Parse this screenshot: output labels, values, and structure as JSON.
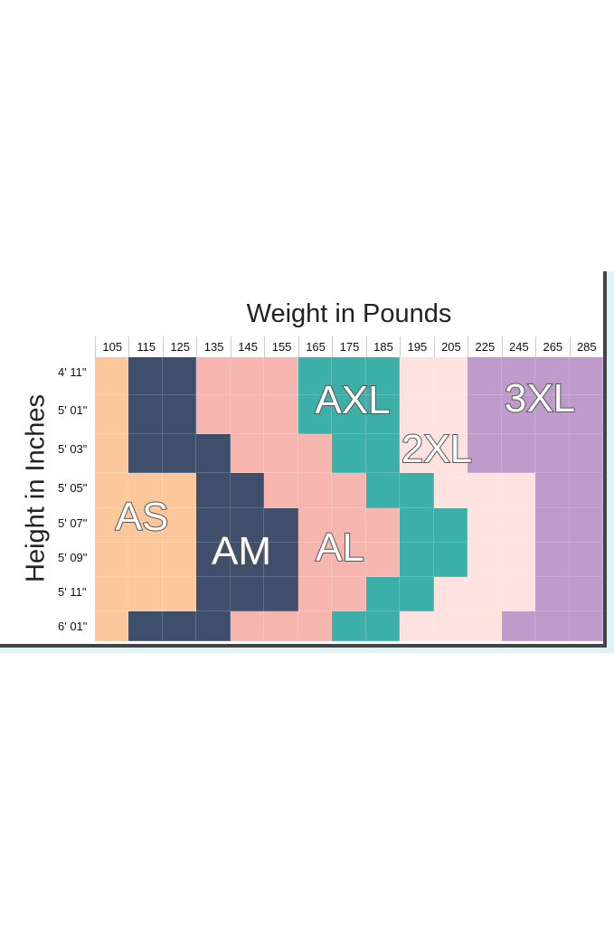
{
  "chart_data": {
    "type": "heatmap",
    "title": "Weight in Pounds",
    "xlabel": "Weight in Pounds",
    "ylabel": "Height in Inches",
    "x": [
      "105",
      "115",
      "125",
      "135",
      "145",
      "155",
      "165",
      "175",
      "185",
      "195",
      "205",
      "225",
      "245",
      "265",
      "285"
    ],
    "y": [
      "4' 11\"",
      "5' 01\"",
      "5' 03\"",
      "5' 05\"",
      "5' 07\"",
      "5' 09\"",
      "5' 11\"",
      "6' 01\""
    ],
    "sizes": {
      "S": "AS",
      "M": "AM",
      "L": "AL",
      "X": "AXL",
      "2": "2XL",
      "3": "3XL"
    },
    "colors": {
      "S": "#fcc89b",
      "M": "#3f4e6b",
      "L": "#f7b5b0",
      "X": "#3cafa8",
      "2": "#fde2df",
      "3": "#bf9bcb"
    },
    "grid": [
      [
        "S",
        "M",
        "M",
        "L",
        "L",
        "L",
        "X",
        "X",
        "X",
        "2",
        "2",
        "3",
        "3",
        "3",
        "3"
      ],
      [
        "S",
        "M",
        "M",
        "L",
        "L",
        "L",
        "X",
        "X",
        "X",
        "2",
        "2",
        "3",
        "3",
        "3",
        "3"
      ],
      [
        "S",
        "M",
        "M",
        "M",
        "L",
        "L",
        "L",
        "X",
        "X",
        "2",
        "2",
        "3",
        "3",
        "3",
        "3"
      ],
      [
        "S",
        "S",
        "S",
        "M",
        "M",
        "L",
        "L",
        "L",
        "X",
        "X",
        "2",
        "2",
        "2",
        "3",
        "3"
      ],
      [
        "S",
        "S",
        "S",
        "M",
        "M",
        "M",
        "L",
        "L",
        "L",
        "X",
        "X",
        "2",
        "2",
        "3",
        "3"
      ],
      [
        "S",
        "S",
        "S",
        "M",
        "M",
        "M",
        "L",
        "L",
        "L",
        "X",
        "X",
        "2",
        "2",
        "3",
        "3"
      ],
      [
        "S",
        "S",
        "S",
        "M",
        "M",
        "M",
        "L",
        "L",
        "X",
        "X",
        "2",
        "2",
        "2",
        "3",
        "3"
      ],
      [
        "S",
        "M",
        "M",
        "M",
        "L",
        "L",
        "L",
        "X",
        "X",
        "2",
        "2",
        "2",
        "3",
        "3",
        "3"
      ]
    ]
  }
}
